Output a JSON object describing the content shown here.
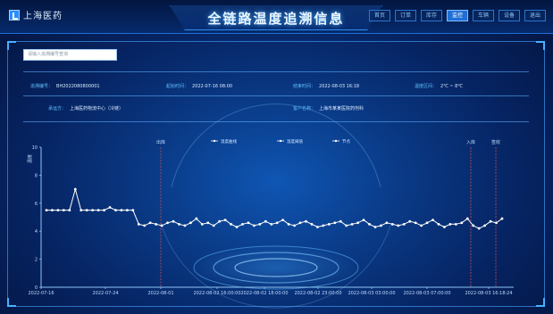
{
  "header": {
    "logo_text": "上海医药",
    "title": "全链路温度追溯信息",
    "nav": [
      {
        "label": "首页",
        "active": false
      },
      {
        "label": "订单",
        "active": false
      },
      {
        "label": "库存",
        "active": false
      },
      {
        "label": "监控",
        "active": true
      },
      {
        "label": "车辆",
        "active": false
      },
      {
        "label": "设备",
        "active": false
      },
      {
        "label": "退出",
        "active": false
      }
    ]
  },
  "search": {
    "placeholder": "请输入追溯编号查询"
  },
  "info_row1": [
    {
      "key": "追溯编号：",
      "value": "BH2022080800001"
    },
    {
      "key": "起始时间：",
      "value": "2022-07-16 08:00"
    },
    {
      "key": "结束时间：",
      "value": "2022-08-03 16:18"
    },
    {
      "key": "温度区间：",
      "value": "2℃ ~ 8℃"
    }
  ],
  "info_row2": [
    {
      "key": "承运方：",
      "value": "上海医药物流中心（冷链）"
    },
    {
      "key": "客户名称：",
      "value": "上海市某某医院药剂科"
    }
  ],
  "chart_data": {
    "type": "line",
    "ylabel": "温度",
    "legend": [
      "温度曲线",
      "温度阈值",
      "节点"
    ],
    "event_labels": [
      {
        "text": "出库",
        "x_index": 0
      },
      {
        "text": "入库",
        "x_index": 1
      },
      {
        "text": "签收",
        "x_index": 2
      }
    ],
    "x_ticks": [
      "2022-07-16",
      "2022-07-24",
      "2022-08-01",
      "2022-08-02 16:00:00",
      "2022-08-02 18:00:00",
      "2022-08-02 23:00:00",
      "2022-08-03 03:00:00",
      "2022-08-03 07:00:00",
      "2022-08-03 16:18:24"
    ],
    "y_ticks": [
      "10",
      "8",
      "6",
      "4",
      "2",
      "0"
    ],
    "ylim": [
      0,
      10
    ],
    "series": [
      {
        "values": [
          5.5,
          5.5,
          5.5,
          5.5,
          5.5,
          7.0,
          5.5,
          5.5,
          5.5,
          5.5,
          5.5,
          5.7,
          5.5,
          5.5,
          5.5,
          5.5,
          4.5,
          4.4,
          4.6,
          4.5,
          4.4,
          4.6,
          4.7,
          4.5,
          4.4,
          4.6,
          4.9,
          4.5,
          4.6,
          4.4,
          4.7,
          4.8,
          4.5,
          4.3,
          4.5,
          4.6,
          4.4,
          4.5,
          4.7,
          4.5,
          4.6,
          4.8,
          4.5,
          4.4,
          4.6,
          4.7,
          4.5,
          4.3,
          4.4,
          4.5,
          4.6,
          4.7,
          4.4,
          4.5,
          4.6,
          4.8,
          4.5,
          4.3,
          4.4,
          4.6,
          4.5,
          4.4,
          4.5,
          4.7,
          4.6,
          4.4,
          4.6,
          4.8,
          4.5,
          4.3,
          4.5,
          4.5,
          4.6,
          4.9,
          4.4,
          4.2,
          4.4,
          4.7,
          4.6,
          4.9
        ]
      }
    ]
  },
  "colors": {
    "line": "#ffffff",
    "point": "#ffffff",
    "event_line": "#d04a4a",
    "axis": "#8fc5f5"
  }
}
